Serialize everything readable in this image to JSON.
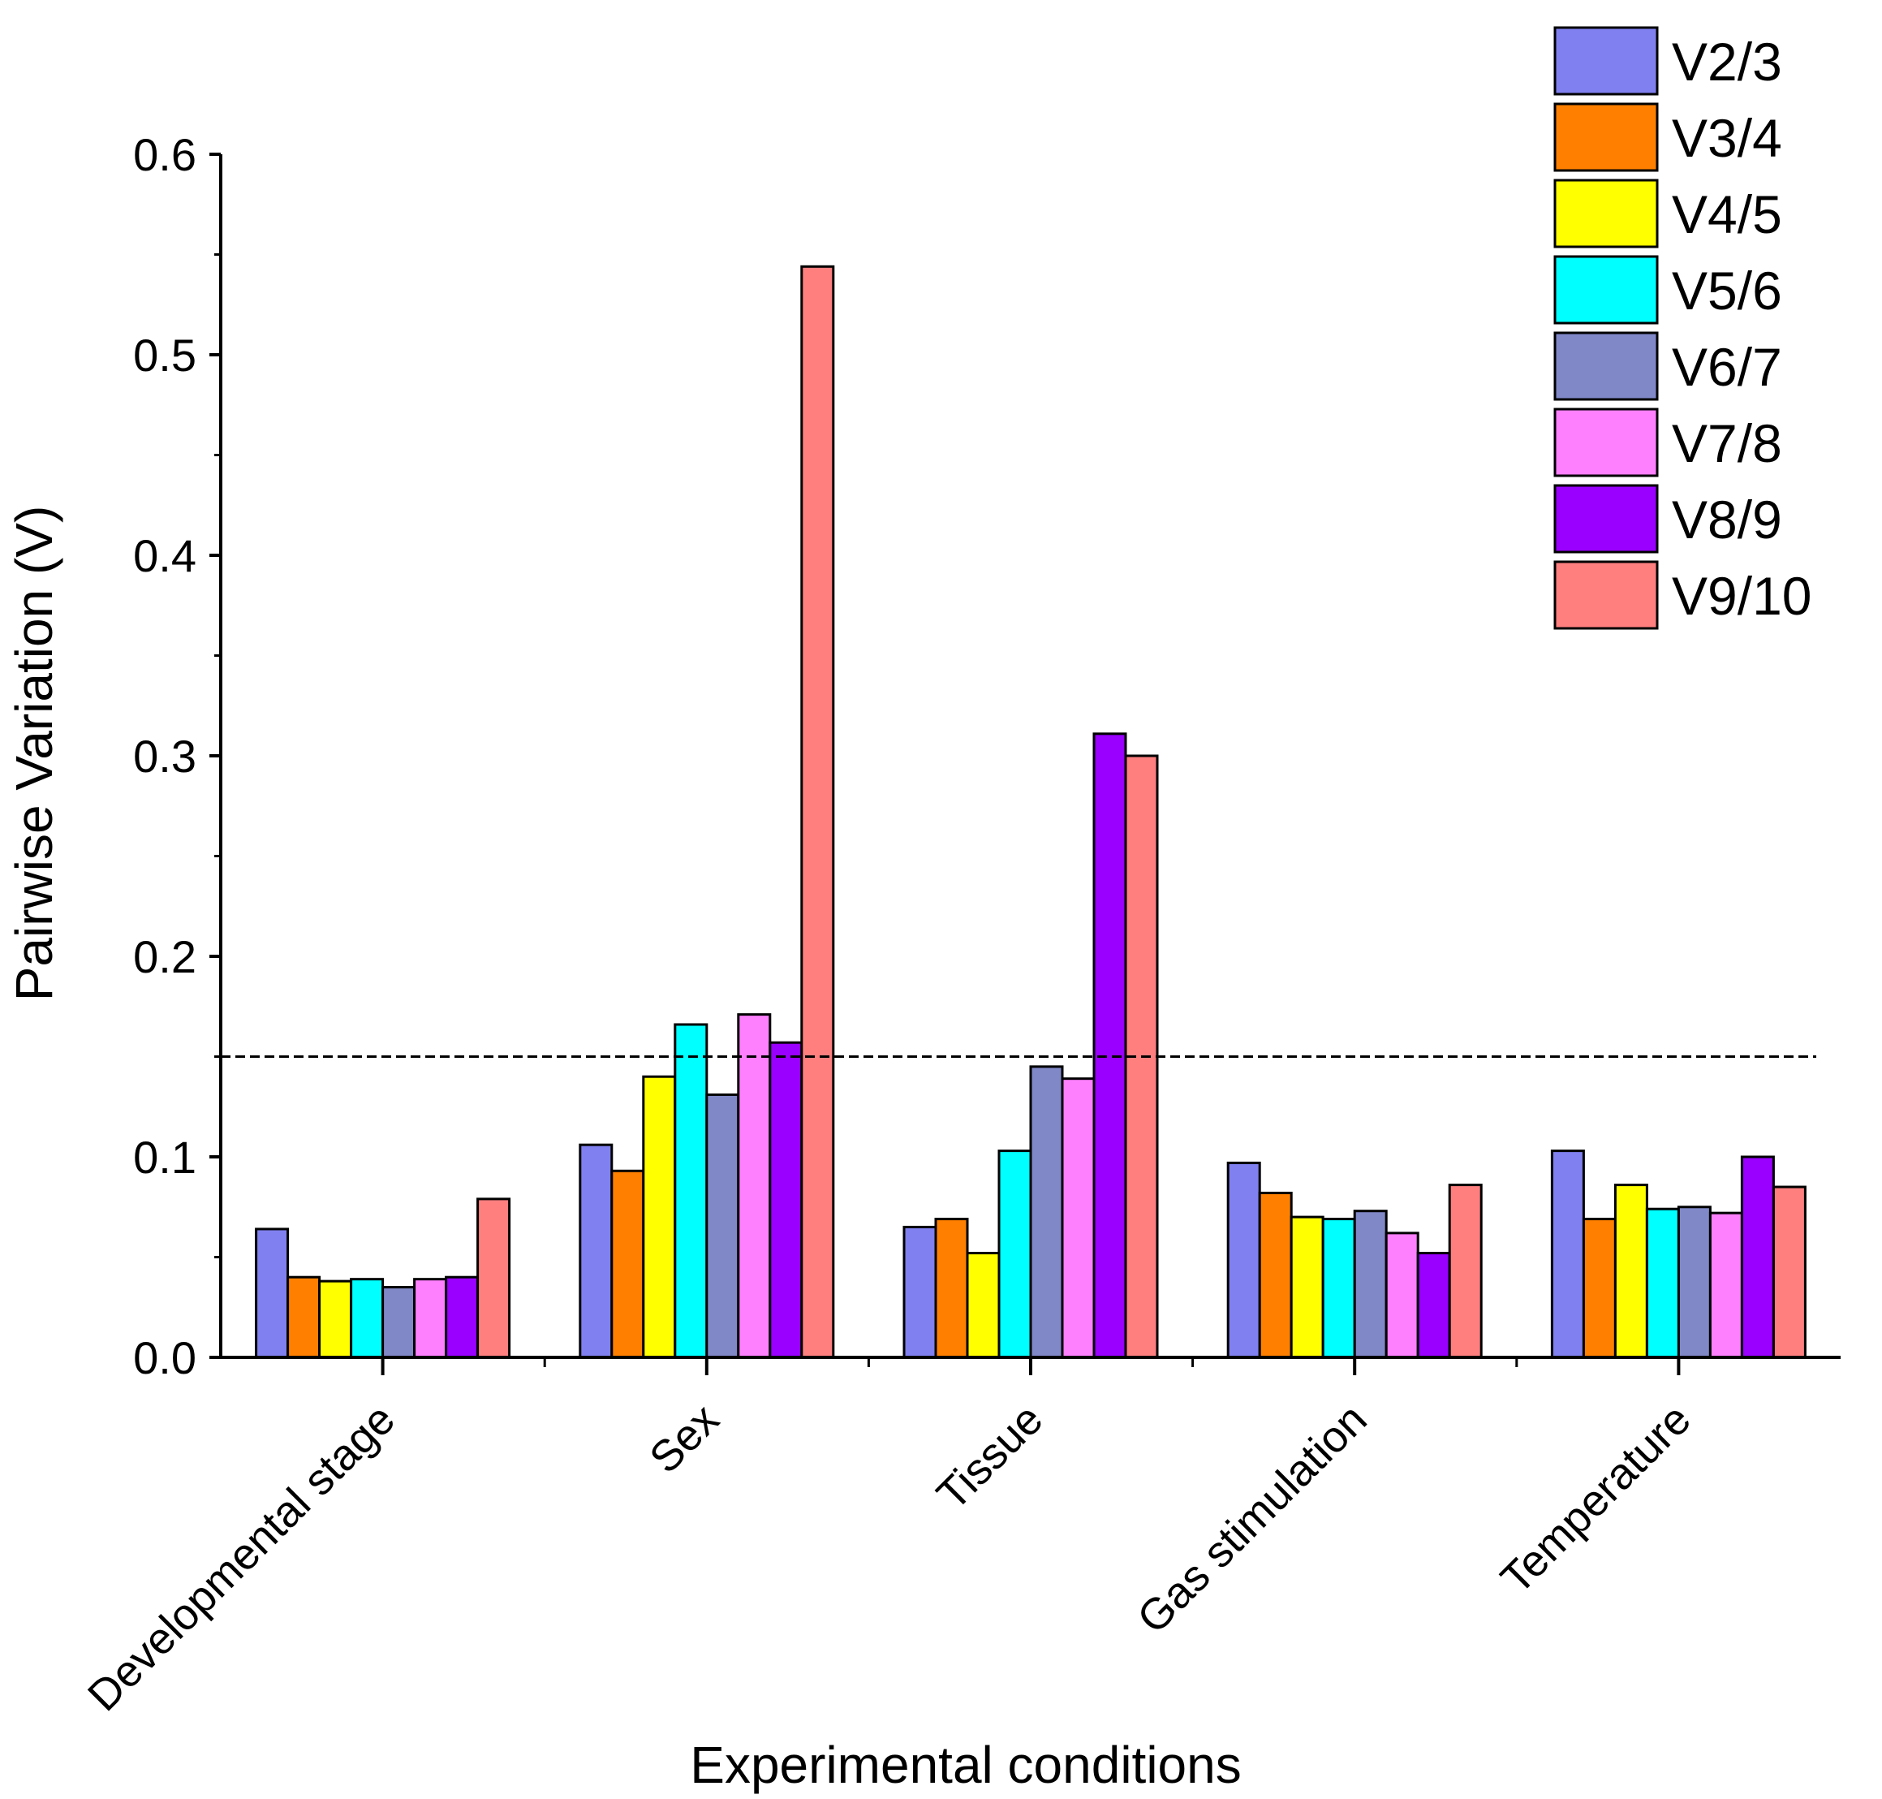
{
  "chart_data": {
    "type": "bar",
    "title": "",
    "xlabel": "Experimental conditions",
    "ylabel": "Pairwise Variation (V)",
    "ylim": [
      0,
      0.6
    ],
    "yticks": [
      "0.0",
      "0.1",
      "0.2",
      "0.3",
      "0.4",
      "0.5",
      "0.6"
    ],
    "grid": false,
    "legend_position": "top-right",
    "threshold": 0.15,
    "categories": [
      "Developmental stage",
      "Sex",
      "Tissue",
      "Gas stimulation",
      "Temperature"
    ],
    "series": [
      {
        "name": "V2/3",
        "color": "#8080f0",
        "values": [
          0.064,
          0.106,
          0.065,
          0.097,
          0.103
        ]
      },
      {
        "name": "V3/4",
        "color": "#ff8000",
        "values": [
          0.04,
          0.093,
          0.069,
          0.082,
          0.069
        ]
      },
      {
        "name": "V4/5",
        "color": "#ffff00",
        "values": [
          0.038,
          0.14,
          0.052,
          0.07,
          0.086
        ]
      },
      {
        "name": "V5/6",
        "color": "#00ffff",
        "values": [
          0.039,
          0.166,
          0.103,
          0.069,
          0.074
        ]
      },
      {
        "name": "V6/7",
        "color": "#8088c8",
        "values": [
          0.035,
          0.131,
          0.145,
          0.073,
          0.075
        ]
      },
      {
        "name": "V7/8",
        "color": "#ff80ff",
        "values": [
          0.039,
          0.171,
          0.139,
          0.062,
          0.072
        ]
      },
      {
        "name": "V8/9",
        "color": "#9900ff",
        "values": [
          0.04,
          0.157,
          0.311,
          0.052,
          0.1
        ]
      },
      {
        "name": "V9/10",
        "color": "#ff7f7f",
        "values": [
          0.079,
          0.544,
          0.3,
          0.086,
          0.085
        ]
      }
    ]
  }
}
